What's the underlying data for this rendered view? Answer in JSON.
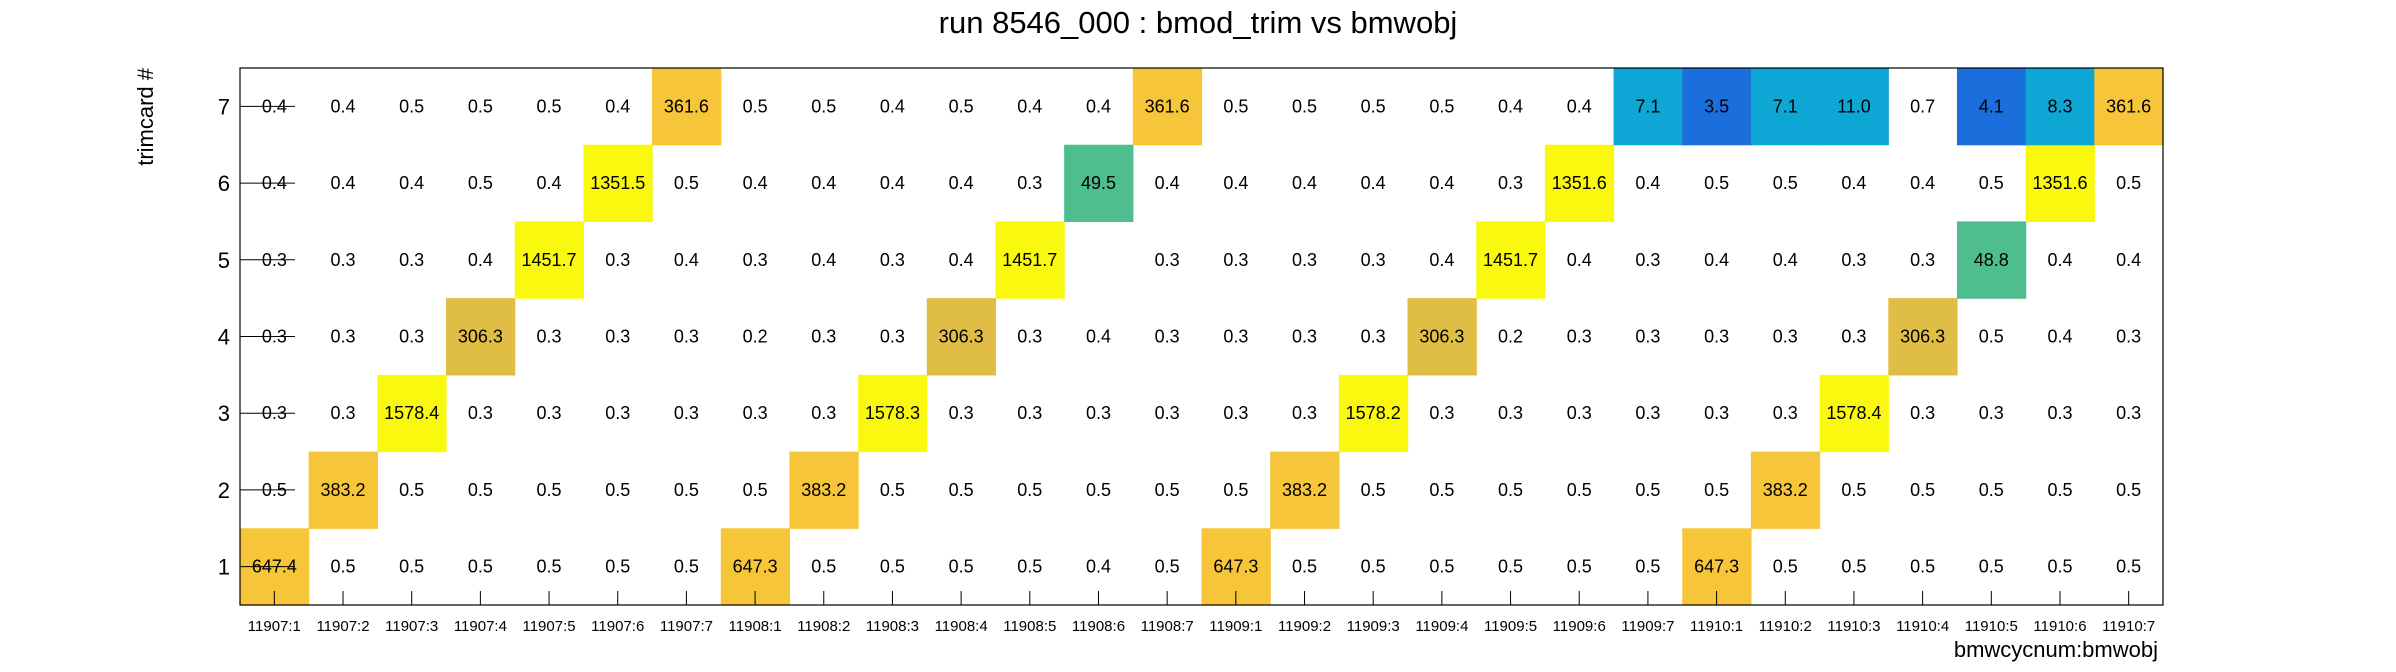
{
  "chart_data": {
    "type": "heatmap",
    "title": "run 8546_000 : bmod_trim vs bmwobj",
    "xlabel": "bmwcycnum:bmwobj",
    "ylabel": "trimcard #",
    "x_categories": [
      "11907:1",
      "11907:2",
      "11907:3",
      "11907:4",
      "11907:5",
      "11907:6",
      "11907:7",
      "11908:1",
      "11908:2",
      "11908:3",
      "11908:4",
      "11908:5",
      "11908:6",
      "11908:7",
      "11909:1",
      "11909:2",
      "11909:3",
      "11909:4",
      "11909:5",
      "11909:6",
      "11909:7",
      "11910:1",
      "11910:2",
      "11910:3",
      "11910:4",
      "11910:5",
      "11910:6",
      "11910:7"
    ],
    "y_categories": [
      "1",
      "2",
      "3",
      "4",
      "5",
      "6",
      "7"
    ],
    "values": [
      [
        "647.4",
        "0.5",
        "0.5",
        "0.5",
        "0.5",
        "0.5",
        "0.5",
        "647.3",
        "0.5",
        "0.5",
        "0.5",
        "0.5",
        "0.4",
        "0.5",
        "647.3",
        "0.5",
        "0.5",
        "0.5",
        "0.5",
        "0.5",
        "0.5",
        "647.3",
        "0.5",
        "0.5",
        "0.5",
        "0.5",
        "0.5",
        "0.5"
      ],
      [
        "0.5",
        "383.2",
        "0.5",
        "0.5",
        "0.5",
        "0.5",
        "0.5",
        "0.5",
        "383.2",
        "0.5",
        "0.5",
        "0.5",
        "0.5",
        "0.5",
        "0.5",
        "383.2",
        "0.5",
        "0.5",
        "0.5",
        "0.5",
        "0.5",
        "0.5",
        "383.2",
        "0.5",
        "0.5",
        "0.5",
        "0.5",
        "0.5"
      ],
      [
        "0.3",
        "0.3",
        "1578.4",
        "0.3",
        "0.3",
        "0.3",
        "0.3",
        "0.3",
        "0.3",
        "1578.3",
        "0.3",
        "0.3",
        "0.3",
        "0.3",
        "0.3",
        "0.3",
        "1578.2",
        "0.3",
        "0.3",
        "0.3",
        "0.3",
        "0.3",
        "0.3",
        "1578.4",
        "0.3",
        "0.3",
        "0.3",
        "0.3"
      ],
      [
        "0.3",
        "0.3",
        "0.3",
        "306.3",
        "0.3",
        "0.3",
        "0.3",
        "0.2",
        "0.3",
        "0.3",
        "306.3",
        "0.3",
        "0.4",
        "0.3",
        "0.3",
        "0.3",
        "0.3",
        "306.3",
        "0.2",
        "0.3",
        "0.3",
        "0.3",
        "0.3",
        "0.3",
        "306.3",
        "0.5",
        "0.4",
        "0.3"
      ],
      [
        "0.3",
        "0.3",
        "0.3",
        "0.4",
        "1451.7",
        "0.3",
        "0.4",
        "0.3",
        "0.4",
        "0.3",
        "0.4",
        "1451.7",
        "",
        "0.3",
        "0.3",
        "0.3",
        "0.3",
        "0.4",
        "1451.7",
        "0.4",
        "0.3",
        "0.4",
        "0.4",
        "0.3",
        "0.3",
        "48.8",
        "0.4",
        "0.4"
      ],
      [
        "0.4",
        "0.4",
        "0.4",
        "0.5",
        "0.4",
        "1351.5",
        "0.5",
        "0.4",
        "0.4",
        "0.4",
        "0.4",
        "0.3",
        "49.5",
        "0.4",
        "0.4",
        "0.4",
        "0.4",
        "0.4",
        "0.3",
        "1351.6",
        "0.4",
        "0.5",
        "0.5",
        "0.4",
        "0.4",
        "0.5",
        "1351.6",
        "0.5"
      ],
      [
        "0.4",
        "0.4",
        "0.5",
        "0.5",
        "0.5",
        "0.4",
        "361.6",
        "0.5",
        "0.5",
        "0.4",
        "0.5",
        "0.4",
        "0.4",
        "361.6",
        "0.5",
        "0.5",
        "0.5",
        "0.5",
        "0.4",
        "0.4",
        "7.1",
        "3.5",
        "7.1",
        "11.0",
        "0.7",
        "4.1",
        "8.3",
        "361.6"
      ]
    ],
    "colors": {
      "very_low": "#1a6fdc",
      "low": "#148ed6",
      "low_mid": "#0ea6d4",
      "mid": "#4fbe8e",
      "mid_high": "#e0bd44",
      "high": "#f6c53a",
      "top": "#f9f80e",
      "frame": "#000000"
    }
  }
}
